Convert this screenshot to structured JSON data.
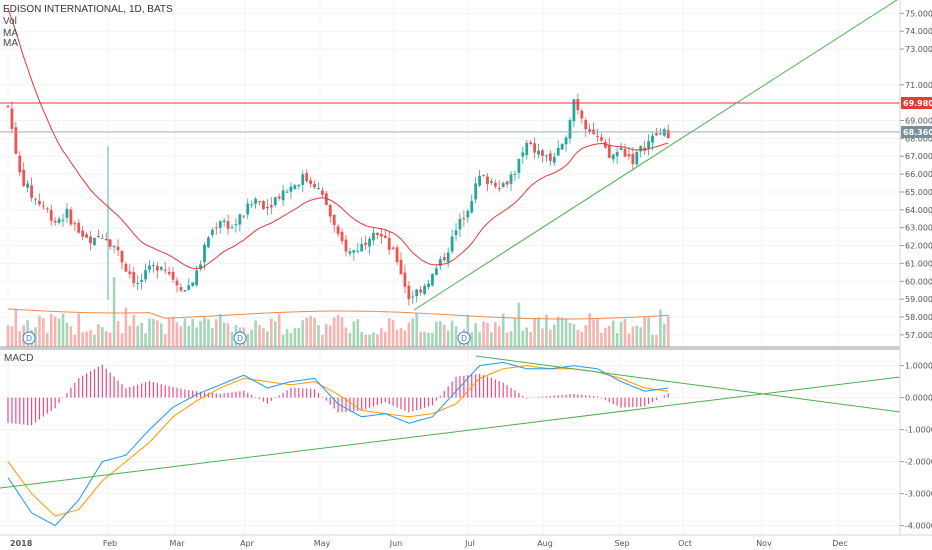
{
  "header": {
    "symbol_title": "EDISON INTERNATIONAL, 1D, BATS",
    "legend": [
      "Vol",
      "MA",
      "MA"
    ],
    "macd_label": "MACD"
  },
  "colors": {
    "up": "#26a69a",
    "down": "#ef5350",
    "vol_up": "#a5d6b7",
    "vol_down": "#f7b3b0",
    "ma_red": "#e53935",
    "vol_ma": "#f08a4b",
    "trend": "#4caf50",
    "resistance": "#e53935",
    "price_line": "#90a4ae",
    "macd_line": "#2196f3",
    "signal_line": "#ff9800",
    "hist": "#e91e63"
  },
  "axes": {
    "x_ticks": [
      "2018",
      "Feb",
      "Mar",
      "Apr",
      "May",
      "Jun",
      "Jul",
      "Aug",
      "Sep",
      "Oct",
      "Nov",
      "Dec"
    ],
    "price_ticks": [
      "75.0000",
      "74.0000",
      "73.0000",
      "71.0000",
      "69.0000",
      "68.0000",
      "67.0000",
      "66.0000",
      "65.0000",
      "64.0000",
      "63.0000",
      "62.0000",
      "61.0000",
      "60.0000",
      "59.0000",
      "58.0000",
      "57.0000"
    ],
    "macd_ticks": [
      "1.0000",
      "0.0000",
      "-1.0000",
      "-2.0000",
      "-3.0000",
      "-4.0000"
    ],
    "resistance_label": "69.9800",
    "last_price_label": "68.3600"
  },
  "events": [
    "D",
    "D",
    "D"
  ],
  "chart_data": {
    "type": "line",
    "title": "EDISON INTERNATIONAL, 1D, BATS",
    "price": {
      "xlabel": "",
      "ylabel": "",
      "ylim": [
        56.6,
        75.3
      ],
      "close": [
        [
          0,
          69.8
        ],
        [
          3,
          66.0
        ],
        [
          6,
          64.8
        ],
        [
          9,
          64.2
        ],
        [
          12,
          63.4
        ],
        [
          15,
          63.8
        ],
        [
          18,
          62.8
        ],
        [
          21,
          62.0
        ],
        [
          24,
          62.7
        ],
        [
          27,
          62.0
        ],
        [
          30,
          60.8
        ],
        [
          33,
          59.8
        ],
        [
          36,
          60.6
        ],
        [
          39,
          61.0
        ],
        [
          42,
          60.2
        ],
        [
          45,
          59.5
        ],
        [
          48,
          60.4
        ],
        [
          51,
          62.5
        ],
        [
          54,
          63.5
        ],
        [
          57,
          63.0
        ],
        [
          60,
          63.8
        ],
        [
          63,
          64.6
        ],
        [
          66,
          64.2
        ],
        [
          69,
          64.9
        ],
        [
          72,
          65.3
        ],
        [
          75,
          65.8
        ],
        [
          78,
          65.5
        ],
        [
          81,
          64.3
        ],
        [
          84,
          62.4
        ],
        [
          87,
          61.6
        ],
        [
          90,
          62.0
        ],
        [
          93,
          63.0
        ],
        [
          96,
          62.2
        ],
        [
          99,
          61.2
        ],
        [
          102,
          59.1
        ],
        [
          105,
          59.6
        ],
        [
          108,
          60.3
        ],
        [
          111,
          61.4
        ],
        [
          114,
          62.8
        ],
        [
          117,
          64.2
        ],
        [
          120,
          65.8
        ],
        [
          123,
          65.6
        ],
        [
          126,
          65.4
        ],
        [
          129,
          66.2
        ],
        [
          132,
          67.6
        ],
        [
          135,
          67.2
        ],
        [
          138,
          66.8
        ],
        [
          141,
          67.4
        ],
        [
          144,
          70.2
        ],
        [
          147,
          68.8
        ],
        [
          150,
          68.0
        ],
        [
          153,
          66.9
        ],
        [
          156,
          67.4
        ],
        [
          159,
          66.8
        ],
        [
          162,
          67.6
        ],
        [
          165,
          68.2
        ],
        [
          168,
          68.3
        ]
      ],
      "resistance": 69.98,
      "last": 68.36
    },
    "macd": {
      "ylim": [
        -4.2,
        1.3
      ],
      "x": [
        0,
        6,
        12,
        18,
        24,
        30,
        36,
        42,
        48,
        54,
        60,
        66,
        72,
        78,
        84,
        90,
        96,
        102,
        108,
        114,
        120,
        126,
        132,
        138,
        144,
        150,
        156,
        162,
        168
      ],
      "macd": [
        -2.5,
        -3.6,
        -4.0,
        -3.2,
        -2.0,
        -1.8,
        -1.0,
        -0.3,
        0.1,
        0.4,
        0.7,
        0.3,
        0.5,
        0.6,
        -0.2,
        -0.6,
        -0.5,
        -0.8,
        -0.6,
        0.2,
        1.0,
        1.1,
        0.9,
        0.9,
        1.0,
        0.9,
        0.5,
        0.2,
        0.3
      ],
      "signal": [
        -2.0,
        -3.0,
        -3.7,
        -3.5,
        -2.6,
        -2.0,
        -1.4,
        -0.6,
        -0.1,
        0.3,
        0.6,
        0.5,
        0.4,
        0.5,
        0.1,
        -0.4,
        -0.5,
        -0.6,
        -0.5,
        -0.2,
        0.6,
        0.9,
        1.0,
        0.9,
        0.9,
        0.8,
        0.6,
        0.3,
        0.2
      ]
    }
  }
}
